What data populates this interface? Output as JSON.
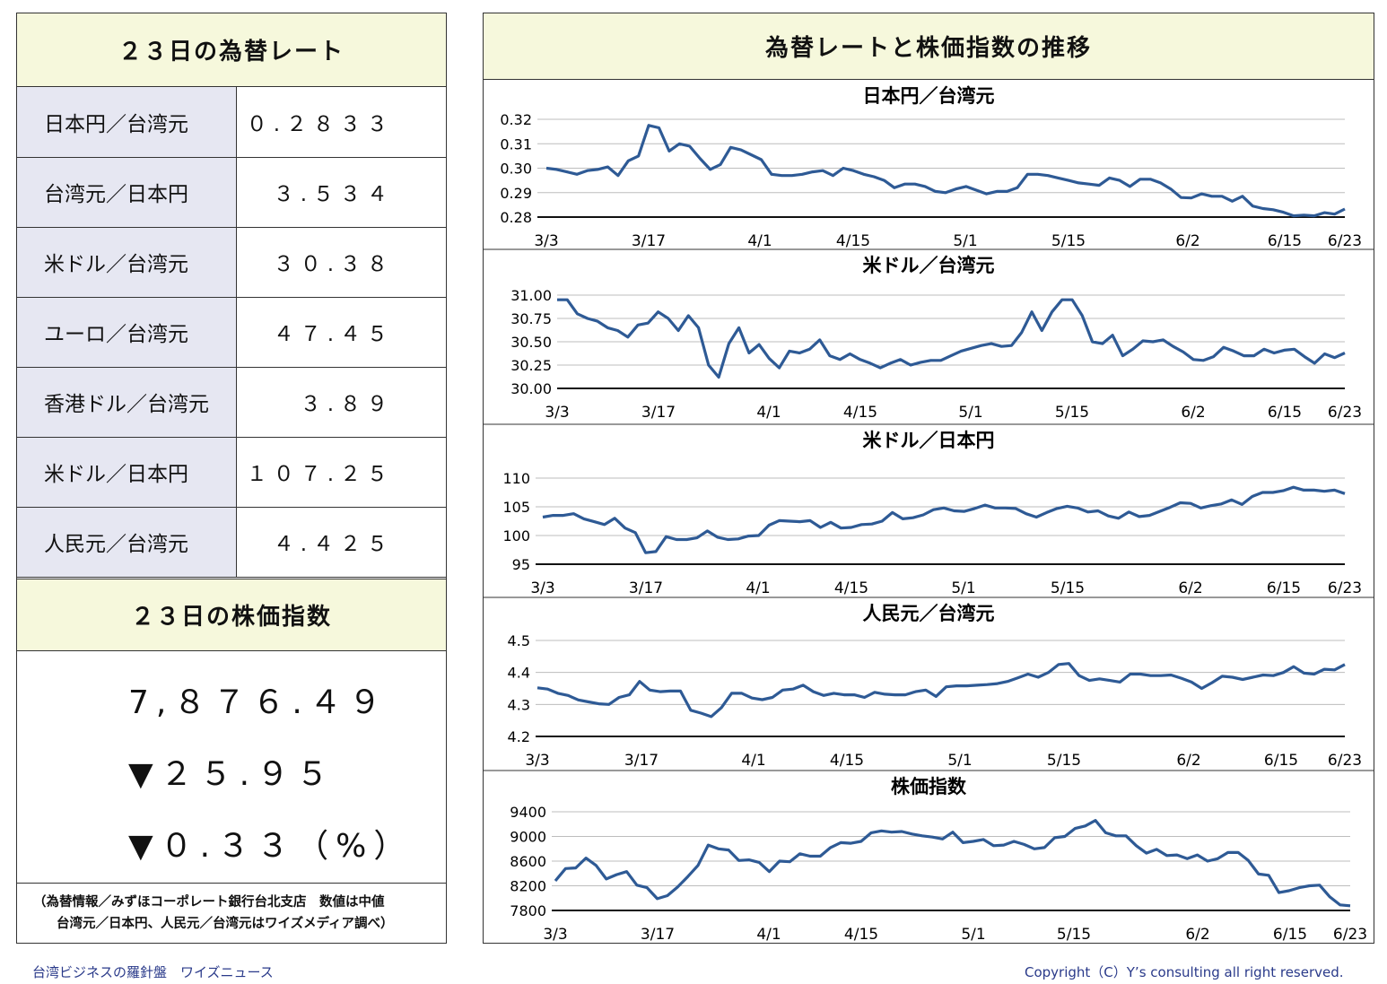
{
  "rates_panel": {
    "title": "２３日の為替レート",
    "rows": [
      {
        "label": "日本円／台湾元",
        "value": "０.２８３３"
      },
      {
        "label": "台湾元／日本円",
        "value": "３.５３４"
      },
      {
        "label": "米ドル／台湾元",
        "value": "３０.３８"
      },
      {
        "label": "ユーロ／台湾元",
        "value": "４７.４５"
      },
      {
        "label": "香港ドル／台湾元",
        "value": "３.８９"
      },
      {
        "label": "米ドル／日本円",
        "value": "１０７.２５"
      },
      {
        "label": "人民元／台湾元",
        "value": "４.４２５"
      }
    ]
  },
  "stock_panel": {
    "title": "２３日の株価指数",
    "value": "7,８７６.４９",
    "change": "▼２５.９５",
    "change_pct": "▼０.３３（%）"
  },
  "note": {
    "line1": "（為替情報／みずほコーポレート銀行台北支店　数値は中値",
    "line2": "台湾元／日本円、人民元／台湾元はワイズメディア調べ）"
  },
  "charts_panel": {
    "title": "為替レートと株価指数の推移"
  },
  "footer": {
    "left": "台湾ビジネスの羅針盤　ワイズニュース",
    "right": "Copyright（C）Y’s consulting all right reserved."
  },
  "colors": {
    "line": "#2e5a95",
    "header_bg": "#f6f8dc",
    "label_bg": "#e6e7f2"
  },
  "chart_data": [
    {
      "type": "line",
      "title": "日本円／台湾元",
      "ylim": [
        0.28,
        0.32
      ],
      "yticks": [
        "0.32",
        "0.31",
        "0.30",
        "0.29",
        "0.28"
      ],
      "xticks": [
        "3/3",
        "3/17",
        "4/1",
        "4/15",
        "5/1",
        "5/15",
        "6/2",
        "6/15",
        "6/23"
      ],
      "series": [
        {
          "values": [
            0.3,
            0.2995,
            0.2985,
            0.2975,
            0.299,
            0.2995,
            0.3005,
            0.297,
            0.303,
            0.305,
            0.3175,
            0.3165,
            0.307,
            0.31,
            0.309,
            0.304,
            0.2995,
            0.3015,
            0.3085,
            0.3075,
            0.3055,
            0.3035,
            0.2975,
            0.297,
            0.297,
            0.2975,
            0.2985,
            0.299,
            0.297,
            0.3,
            0.299,
            0.2975,
            0.2965,
            0.295,
            0.292,
            0.2935,
            0.2935,
            0.2925,
            0.2905,
            0.29,
            0.2915,
            0.2925,
            0.291,
            0.2895,
            0.2905,
            0.2905,
            0.292,
            0.2975,
            0.2975,
            0.297,
            0.296,
            0.295,
            0.294,
            0.2935,
            0.293,
            0.296,
            0.295,
            0.2925,
            0.2955,
            0.2955,
            0.294,
            0.2915,
            0.288,
            0.2878,
            0.2895,
            0.2885,
            0.2885,
            0.2865,
            0.2885,
            0.2845,
            0.2835,
            0.283,
            0.282,
            0.2805,
            0.2808,
            0.2805,
            0.2818,
            0.2812,
            0.2833
          ]
        }
      ]
    },
    {
      "type": "line",
      "title": "米ドル／台湾元",
      "ylim": [
        30.0,
        31.0
      ],
      "yticks": [
        "31.00",
        "30.75",
        "30.50",
        "30.25",
        "30.00"
      ],
      "xticks": [
        "3/3",
        "3/17",
        "4/1",
        "4/15",
        "5/1",
        "5/15",
        "6/2",
        "6/15",
        "6/23"
      ],
      "series": [
        {
          "values": [
            30.95,
            30.95,
            30.8,
            30.75,
            30.72,
            30.65,
            30.62,
            30.55,
            30.68,
            30.7,
            30.82,
            30.75,
            30.62,
            30.78,
            30.65,
            30.25,
            30.12,
            30.48,
            30.65,
            30.38,
            30.47,
            30.32,
            30.22,
            30.4,
            30.38,
            30.42,
            30.52,
            30.35,
            30.31,
            30.37,
            30.31,
            30.27,
            30.22,
            30.27,
            30.31,
            30.25,
            30.28,
            30.3,
            30.3,
            30.35,
            30.4,
            30.43,
            30.46,
            30.48,
            30.45,
            30.46,
            30.6,
            30.82,
            30.62,
            30.82,
            30.95,
            30.95,
            30.78,
            30.5,
            30.48,
            30.57,
            30.35,
            30.42,
            30.51,
            30.5,
            30.52,
            30.45,
            30.39,
            30.31,
            30.3,
            30.34,
            30.44,
            30.4,
            30.35,
            30.35,
            30.42,
            30.38,
            30.41,
            30.42,
            30.34,
            30.27,
            30.37,
            30.33,
            30.38
          ]
        }
      ]
    },
    {
      "type": "line",
      "title": "米ドル／日本円",
      "ylim": [
        95,
        110
      ],
      "yticks": [
        "110",
        "105",
        "100",
        "95"
      ],
      "xticks": [
        "3/3",
        "3/17",
        "4/1",
        "4/15",
        "5/1",
        "5/15",
        "6/2",
        "6/15",
        "6/23"
      ],
      "series": [
        {
          "values": [
            103.2,
            103.5,
            103.5,
            103.8,
            102.9,
            102.4,
            101.9,
            103.0,
            101.3,
            100.5,
            97.0,
            97.2,
            99.8,
            99.3,
            99.3,
            99.6,
            100.8,
            99.7,
            99.3,
            99.4,
            99.9,
            100.0,
            101.8,
            102.6,
            102.5,
            102.4,
            102.6,
            101.4,
            102.3,
            101.3,
            101.4,
            101.9,
            102.0,
            102.5,
            104.0,
            102.9,
            103.1,
            103.6,
            104.5,
            104.8,
            104.3,
            104.2,
            104.7,
            105.3,
            104.8,
            104.8,
            104.7,
            103.8,
            103.2,
            104.0,
            104.7,
            105.1,
            104.8,
            104.1,
            104.3,
            103.4,
            103.0,
            104.1,
            103.3,
            103.5,
            104.2,
            104.9,
            105.7,
            105.6,
            104.8,
            105.2,
            105.5,
            106.2,
            105.4,
            106.8,
            107.5,
            107.5,
            107.8,
            108.4,
            107.9,
            107.9,
            107.7,
            107.9,
            107.3
          ]
        }
      ]
    },
    {
      "type": "line",
      "title": "人民元／台湾元",
      "ylim": [
        4.2,
        4.5
      ],
      "yticks": [
        "4.5",
        "4.4",
        "4.3",
        "4.2"
      ],
      "xticks": [
        "3/3",
        "3/17",
        "4/1",
        "4/15",
        "5/1",
        "5/15",
        "6/2",
        "6/15",
        "6/23"
      ],
      "series": [
        {
          "values": [
            4.352,
            4.348,
            4.335,
            4.328,
            4.314,
            4.308,
            4.302,
            4.3,
            4.322,
            4.33,
            4.372,
            4.345,
            4.34,
            4.342,
            4.342,
            4.282,
            4.273,
            4.262,
            4.29,
            4.335,
            4.335,
            4.32,
            4.315,
            4.322,
            4.345,
            4.348,
            4.36,
            4.34,
            4.328,
            4.335,
            4.33,
            4.33,
            4.322,
            4.338,
            4.332,
            4.33,
            4.33,
            4.34,
            4.345,
            4.325,
            4.355,
            4.358,
            4.358,
            4.36,
            4.362,
            4.365,
            4.372,
            4.383,
            4.395,
            4.385,
            4.4,
            4.425,
            4.428,
            4.39,
            4.375,
            4.38,
            4.375,
            4.37,
            4.395,
            4.395,
            4.39,
            4.39,
            4.392,
            4.382,
            4.37,
            4.35,
            4.368,
            4.388,
            4.385,
            4.378,
            4.385,
            4.392,
            4.39,
            4.4,
            4.418,
            4.398,
            4.395,
            4.41,
            4.408,
            4.425
          ]
        }
      ]
    },
    {
      "type": "line",
      "title": "株価指数",
      "ylim": [
        7800,
        9400
      ],
      "yticks": [
        "9400",
        "9000",
        "8600",
        "8200",
        "7800"
      ],
      "xticks": [
        "3/3",
        "3/17",
        "4/1",
        "4/15",
        "5/1",
        "5/15",
        "6/2",
        "6/15",
        "6/23"
      ],
      "series": [
        {
          "values": [
            8280,
            8480,
            8490,
            8650,
            8530,
            8310,
            8380,
            8430,
            8210,
            8170,
            7990,
            8040,
            8180,
            8350,
            8530,
            8860,
            8800,
            8780,
            8610,
            8620,
            8580,
            8430,
            8600,
            8590,
            8720,
            8680,
            8680,
            8820,
            8900,
            8890,
            8920,
            9060,
            9090,
            9070,
            9080,
            9040,
            9010,
            8990,
            8960,
            9070,
            8900,
            8920,
            8950,
            8850,
            8860,
            8920,
            8870,
            8800,
            8820,
            8980,
            9000,
            9130,
            9170,
            9260,
            9060,
            9010,
            9010,
            8850,
            8730,
            8790,
            8690,
            8700,
            8640,
            8700,
            8600,
            8640,
            8740,
            8740,
            8610,
            8390,
            8370,
            8090,
            8120,
            8170,
            8200,
            8210,
            8020,
            7890,
            7876
          ]
        }
      ]
    }
  ]
}
